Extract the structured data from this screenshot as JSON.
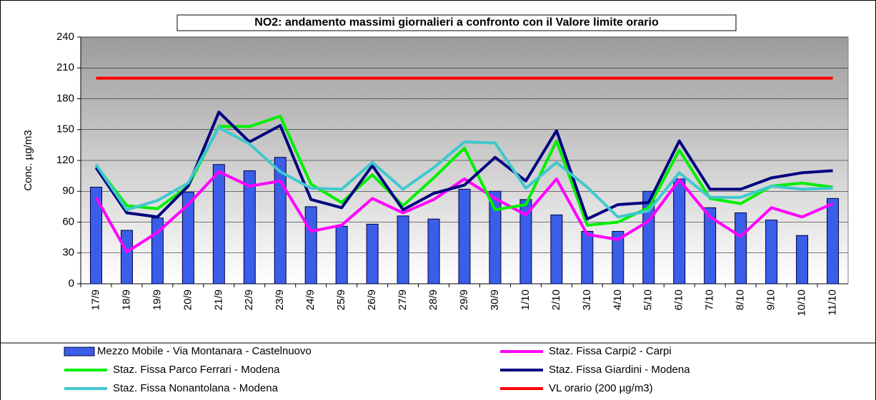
{
  "chart_data": {
    "type": "bar",
    "title": "NO2: andamento massimi giornalieri  a  confronto con il Valore limite orario",
    "y_label": "Conc. µg/m3",
    "categories": [
      "17/9",
      "18/9",
      "19/9",
      "20/9",
      "21/9",
      "22/9",
      "23/9",
      "24/9",
      "25/9",
      "26/9",
      "27/9",
      "28/9",
      "29/9",
      "30/9",
      "1/10",
      "2/10",
      "3/10",
      "4/10",
      "5/10",
      "6/10",
      "7/10",
      "8/10",
      "9/10",
      "10/10",
      "11/10"
    ],
    "ylim": [
      0,
      240
    ],
    "yticks": [
      0,
      30,
      60,
      90,
      120,
      150,
      180,
      210,
      240
    ],
    "grid": true,
    "series": [
      {
        "name": "Mezzo Mobile - Via Montanara - Castelnuovo",
        "type": "bar",
        "color": "#3a5ee8",
        "values": [
          94,
          52,
          64,
          89,
          116,
          110,
          123,
          75,
          56,
          58,
          66,
          63,
          92,
          90,
          82,
          67,
          51,
          51,
          90,
          102,
          74,
          69,
          62,
          47,
          83
        ]
      },
      {
        "name": "Staz. Fissa Carpi2 - Carpi",
        "type": "line",
        "color": "#ff00ff",
        "values": [
          84,
          31,
          50,
          77,
          109,
          95,
          100,
          51,
          57,
          83,
          69,
          82,
          102,
          83,
          67,
          102,
          48,
          43,
          61,
          101,
          65,
          46,
          74,
          65,
          78
        ]
      },
      {
        "name": "Staz. Fissa Parco Ferrari - Modena",
        "type": "line",
        "color": "#00f000",
        "values": [
          115,
          76,
          73,
          95,
          153,
          153,
          163,
          97,
          79,
          106,
          76,
          103,
          132,
          72,
          77,
          139,
          57,
          60,
          74,
          130,
          83,
          78,
          95,
          98,
          94
        ]
      },
      {
        "name": "Staz. Fissa Giardini - Modena",
        "type": "line",
        "color": "#000080",
        "values": [
          113,
          69,
          65,
          95,
          167,
          138,
          154,
          82,
          74,
          115,
          72,
          88,
          96,
          123,
          100,
          149,
          63,
          77,
          79,
          139,
          92,
          92,
          103,
          108,
          110
        ]
      },
      {
        "name": "Staz. Fissa Nonantolana - Modena",
        "type": "line",
        "color": "#40c8cc",
        "values": [
          116,
          72,
          81,
          98,
          152,
          136,
          109,
          93,
          92,
          118,
          92,
          113,
          138,
          137,
          93,
          118,
          94,
          65,
          71,
          108,
          84,
          84,
          95,
          92,
          93
        ]
      },
      {
        "name": "VL orario (200 µg/m3)",
        "type": "line",
        "color": "#ff0000",
        "values": [
          200,
          200,
          200,
          200,
          200,
          200,
          200,
          200,
          200,
          200,
          200,
          200,
          200,
          200,
          200,
          200,
          200,
          200,
          200,
          200,
          200,
          200,
          200,
          200,
          200
        ]
      }
    ]
  }
}
